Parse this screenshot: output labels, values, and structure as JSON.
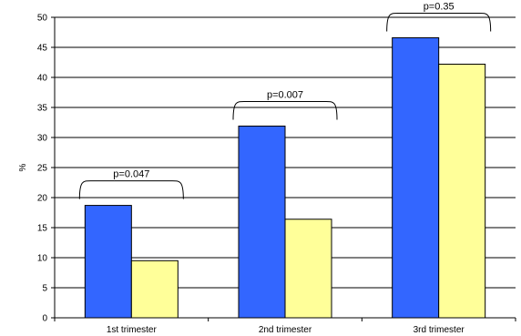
{
  "chart_data": {
    "type": "bar",
    "categories": [
      "1st trimester",
      "2nd trimester",
      "3rd trimester"
    ],
    "series": [
      {
        "values": [
          18.7,
          31.9,
          46.6
        ],
        "color": "#3366FF"
      },
      {
        "values": [
          9.5,
          16.4,
          42.2
        ],
        "color": "#FFFF99"
      }
    ],
    "annotations": [
      "p=0.047",
      "p=0.007",
      "p=0.35"
    ],
    "ylabel": "%",
    "ylim": [
      0,
      50
    ],
    "yticks": [
      0,
      5,
      10,
      15,
      20,
      25,
      30,
      35,
      40,
      45,
      50
    ],
    "grid": true,
    "legend": "none"
  }
}
